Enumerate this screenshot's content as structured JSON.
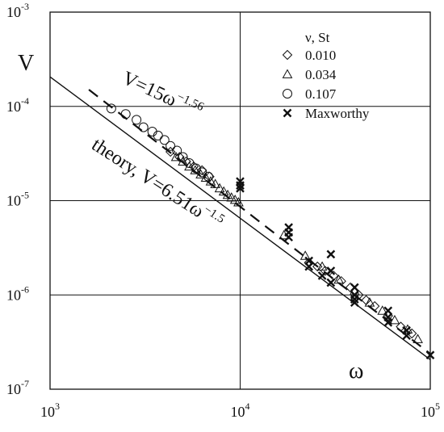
{
  "chart_data": {
    "type": "scatter",
    "xscale": "log",
    "yscale": "log",
    "xlim": [
      1000,
      100000
    ],
    "ylim": [
      1e-07,
      0.001
    ],
    "grid": true,
    "xlabel": "ω",
    "ylabel": "V",
    "x_ticks": [
      {
        "base": "10",
        "exp": "3"
      },
      {
        "base": "10",
        "exp": "4"
      },
      {
        "base": "10",
        "exp": "5"
      }
    ],
    "y_ticks": [
      {
        "base": "10",
        "exp": "-7"
      },
      {
        "base": "10",
        "exp": "-6"
      },
      {
        "base": "10",
        "exp": "-5"
      },
      {
        "base": "10",
        "exp": "-4"
      },
      {
        "base": "10",
        "exp": "-3"
      }
    ],
    "legend_title": "ν, St",
    "legend_position": "top-right",
    "series": [
      {
        "name": "0.010",
        "marker": "diamond",
        "points": [
          [
            4300,
            3.3e-05
          ],
          [
            4800,
            2.9e-05
          ],
          [
            5200,
            2.6e-05
          ],
          [
            5700,
            2.3e-05
          ],
          [
            6300,
            2.1e-05
          ],
          [
            6900,
            1.8e-05
          ],
          [
            23000,
            2.2e-06
          ],
          [
            25500,
            2e-06
          ],
          [
            28000,
            1.8e-06
          ],
          [
            31000,
            1.6e-06
          ],
          [
            34000,
            1.4e-06
          ],
          [
            38000,
            1.2e-06
          ],
          [
            42000,
            1e-06
          ],
          [
            46000,
            8.8e-07
          ],
          [
            51000,
            7.6e-07
          ],
          [
            60000,
            6e-07
          ],
          [
            70000,
            4.6e-07
          ],
          [
            80000,
            3.9e-07
          ]
        ]
      },
      {
        "name": "0.034",
        "marker": "triangle",
        "points": [
          [
            4600,
            2.9e-05
          ],
          [
            5000,
            2.6e-05
          ],
          [
            5400,
            2.3e-05
          ],
          [
            5800,
            2.1e-05
          ],
          [
            6200,
            1.9e-05
          ],
          [
            6600,
            1.75e-05
          ],
          [
            7000,
            1.6e-05
          ],
          [
            7400,
            1.5e-05
          ],
          [
            7800,
            1.35e-05
          ],
          [
            8200,
            1.25e-05
          ],
          [
            8600,
            1.15e-05
          ],
          [
            9000,
            1.08e-05
          ],
          [
            9400,
            1.02e-05
          ],
          [
            9800,
            9.6e-06
          ],
          [
            17000,
            4.3e-06
          ],
          [
            22000,
            2.6e-06
          ],
          [
            27000,
            2e-06
          ],
          [
            33000,
            1.45e-06
          ],
          [
            40000,
            1.1e-06
          ],
          [
            48000,
            8.3e-07
          ],
          [
            56000,
            6.8e-07
          ],
          [
            65000,
            5.4e-07
          ],
          [
            76000,
            4.3e-07
          ],
          [
            86000,
            3.4e-07
          ]
        ]
      },
      {
        "name": "0.107",
        "marker": "circle",
        "points": [
          [
            2100,
            9.5e-05
          ],
          [
            2500,
            8.3e-05
          ],
          [
            2850,
            7.2e-05
          ],
          [
            3100,
            6e-05
          ],
          [
            3450,
            5.4e-05
          ],
          [
            3700,
            4.9e-05
          ],
          [
            4000,
            4.4e-05
          ],
          [
            4300,
            3.8e-05
          ],
          [
            4650,
            3.4e-05
          ],
          [
            5000,
            2.9e-05
          ],
          [
            5400,
            2.5e-05
          ],
          [
            5850,
            2.2e-05
          ],
          [
            6300,
            2e-05
          ],
          [
            6800,
            1.8e-05
          ]
        ]
      },
      {
        "name": "Maxworthy",
        "marker": "x",
        "points": [
          [
            10000,
            1.6e-05
          ],
          [
            10000,
            1.45e-05
          ],
          [
            10000,
            1.35e-05
          ],
          [
            18000,
            5.2e-06
          ],
          [
            18000,
            4.6e-06
          ],
          [
            18000,
            4.1e-06
          ],
          [
            23000,
            2.3e-06
          ],
          [
            23000,
            2e-06
          ],
          [
            27000,
            1.6e-06
          ],
          [
            30000,
            2.7e-06
          ],
          [
            30000,
            1.8e-06
          ],
          [
            30000,
            1.35e-06
          ],
          [
            40000,
            1.2e-06
          ],
          [
            40000,
            1e-06
          ],
          [
            40000,
            9e-07
          ],
          [
            40000,
            8.3e-07
          ],
          [
            60000,
            6.8e-07
          ],
          [
            60000,
            5.8e-07
          ],
          [
            60000,
            5.1e-07
          ],
          [
            75000,
            4.2e-07
          ],
          [
            75000,
            3.7e-07
          ],
          [
            100000,
            2.3e-07
          ]
        ]
      }
    ],
    "fits": [
      {
        "label": "V=15ω",
        "exponent_label": "−1.56",
        "coef": 15,
        "exp": -1.56,
        "xrange": [
          1600,
          100000
        ],
        "style": "dashed"
      },
      {
        "label": "theory, V=6.51ω",
        "exponent_label": "−1.5",
        "coef": 6.51,
        "exp": -1.5,
        "xrange": [
          1000,
          100000
        ],
        "style": "solid"
      }
    ]
  }
}
